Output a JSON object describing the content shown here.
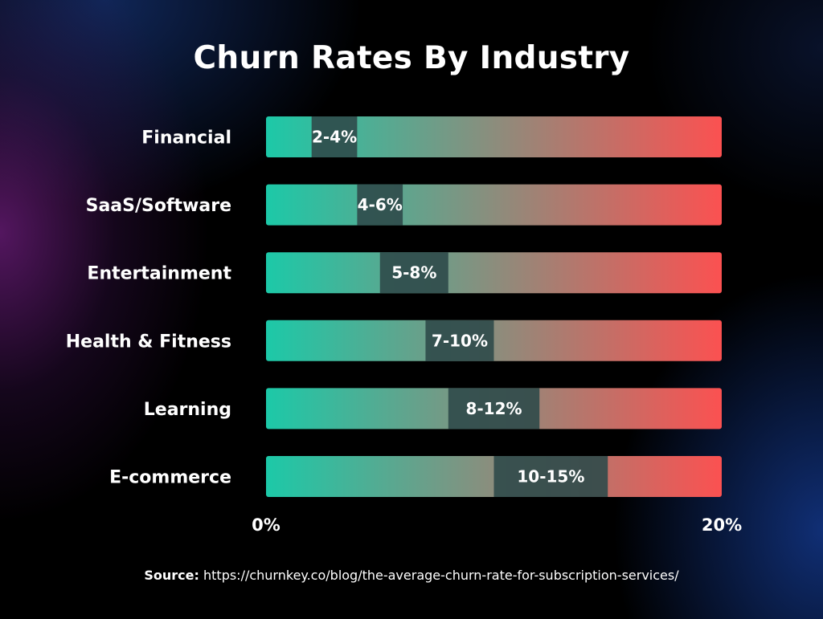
{
  "colors": {
    "bar_start": "#1cc9a8",
    "bar_end": "#fb5151",
    "range_overlay": "#2f4a4a"
  },
  "chart_data": {
    "type": "bar",
    "orientation": "horizontal",
    "title": "Churn Rates By Industry",
    "categories": [
      "Financial",
      "SaaS/Software",
      "Entertainment",
      "Health & Fitness",
      "Learning",
      "E-commerce"
    ],
    "ranges": [
      [
        2,
        4
      ],
      [
        4,
        6
      ],
      [
        5,
        8
      ],
      [
        7,
        10
      ],
      [
        8,
        12
      ],
      [
        10,
        15
      ]
    ],
    "range_labels": [
      "2-4%",
      "4-6%",
      "5-8%",
      "7-10%",
      "8-12%",
      "10-15%"
    ],
    "xlim": [
      0,
      20
    ],
    "x_ticks": [
      {
        "value": 0,
        "label": "0%"
      },
      {
        "value": 20,
        "label": "20%"
      }
    ],
    "grid": false,
    "legend": "none"
  },
  "source": {
    "label": "Source:",
    "url": "https://churnkey.co/blog/the-average-churn-rate-for-subscription-services/"
  }
}
